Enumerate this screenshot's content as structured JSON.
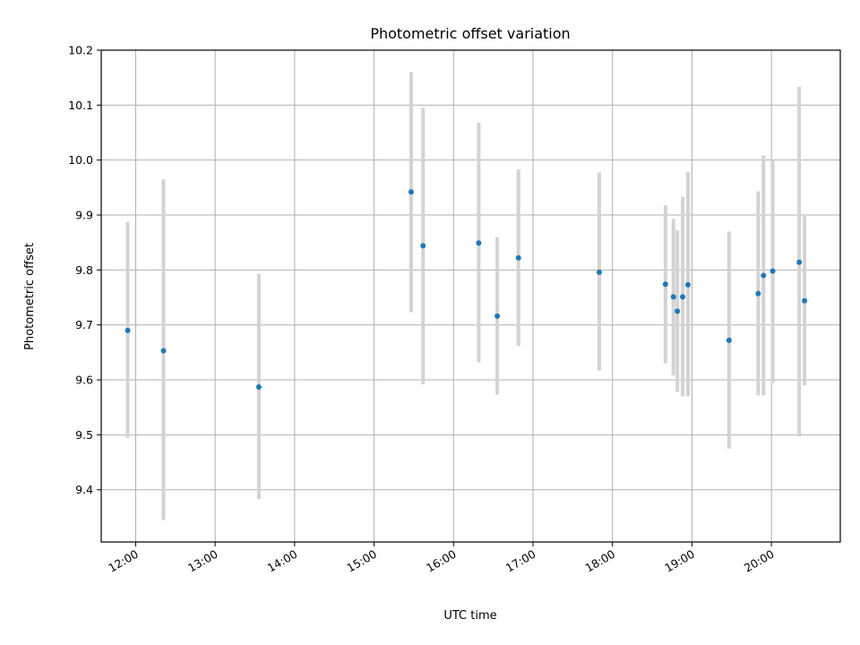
{
  "chart_data": {
    "type": "scatter",
    "title": "Photometric offset variation",
    "xlabel": "UTC time",
    "ylabel": "Photometric offset",
    "x_axis": {
      "type": "time",
      "range": [
        "11:34",
        "20:52"
      ],
      "ticks": [
        "12:00",
        "13:00",
        "14:00",
        "15:00",
        "16:00",
        "17:00",
        "18:00",
        "19:00",
        "20:00"
      ]
    },
    "y_axis": {
      "range": [
        9.305,
        10.2
      ],
      "ticks": [
        "9.4",
        "9.5",
        "9.6",
        "9.7",
        "9.8",
        "9.9",
        "10.0",
        "10.1",
        "10.2"
      ]
    },
    "grid": true,
    "colors": {
      "points": "#1f77b4",
      "error_bars": "#d3d3d3",
      "grid": "#b0b0b0"
    },
    "series": [
      {
        "points": [
          {
            "x": "11:54",
            "y": 9.69,
            "yerr_low": 9.495,
            "yerr_high": 9.887
          },
          {
            "x": "12:21",
            "y": 9.653,
            "yerr_low": 9.345,
            "yerr_high": 9.965
          },
          {
            "x": "13:33",
            "y": 9.587,
            "yerr_low": 9.383,
            "yerr_high": 9.793
          },
          {
            "x": "15:28",
            "y": 9.942,
            "yerr_low": 9.723,
            "yerr_high": 10.16
          },
          {
            "x": "15:37",
            "y": 9.844,
            "yerr_low": 9.592,
            "yerr_high": 10.095
          },
          {
            "x": "16:19",
            "y": 9.849,
            "yerr_low": 9.632,
            "yerr_high": 10.068
          },
          {
            "x": "16:33",
            "y": 9.716,
            "yerr_low": 9.573,
            "yerr_high": 9.86
          },
          {
            "x": "16:49",
            "y": 9.822,
            "yerr_low": 9.662,
            "yerr_high": 9.983
          },
          {
            "x": "17:50",
            "y": 9.796,
            "yerr_low": 9.617,
            "yerr_high": 9.977
          },
          {
            "x": "18:40",
            "y": 9.774,
            "yerr_low": 9.63,
            "yerr_high": 9.918
          },
          {
            "x": "18:46",
            "y": 9.751,
            "yerr_low": 9.608,
            "yerr_high": 9.893
          },
          {
            "x": "18:49",
            "y": 9.725,
            "yerr_low": 9.578,
            "yerr_high": 9.872
          },
          {
            "x": "18:53",
            "y": 9.751,
            "yerr_low": 9.57,
            "yerr_high": 9.933
          },
          {
            "x": "18:57",
            "y": 9.773,
            "yerr_low": 9.57,
            "yerr_high": 9.978
          },
          {
            "x": "19:28",
            "y": 9.672,
            "yerr_low": 9.475,
            "yerr_high": 9.87
          },
          {
            "x": "19:50",
            "y": 9.757,
            "yerr_low": 9.572,
            "yerr_high": 9.943
          },
          {
            "x": "19:54",
            "y": 9.79,
            "yerr_low": 9.572,
            "yerr_high": 10.008
          },
          {
            "x": "20:01",
            "y": 9.798,
            "yerr_low": 9.595,
            "yerr_high": 10.0
          },
          {
            "x": "20:21",
            "y": 9.814,
            "yerr_low": 9.497,
            "yerr_high": 10.133
          },
          {
            "x": "20:25",
            "y": 9.744,
            "yerr_low": 9.59,
            "yerr_high": 9.898
          }
        ]
      }
    ]
  }
}
